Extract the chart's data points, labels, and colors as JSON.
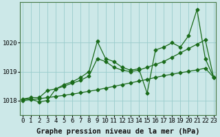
{
  "xlabel": "Graphe pression niveau de la mer (hPa)",
  "background_color": "#cce8e8",
  "grid_color": "#99cccc",
  "line_color": "#1a6b1a",
  "ylim": [
    1017.5,
    1021.4
  ],
  "xlim": [
    -0.3,
    23.3
  ],
  "yticks": [
    1018,
    1019,
    1020
  ],
  "xticks": [
    0,
    1,
    2,
    3,
    4,
    5,
    6,
    7,
    8,
    9,
    10,
    11,
    12,
    13,
    14,
    15,
    16,
    17,
    18,
    19,
    20,
    21,
    22,
    23
  ],
  "line_bottom_x": [
    0,
    1,
    2,
    3,
    4,
    5,
    6,
    7,
    8,
    9,
    10,
    11,
    12,
    13,
    14,
    15,
    16,
    17,
    18,
    19,
    20,
    21,
    22,
    23
  ],
  "line_bottom_y": [
    1018.0,
    1018.03,
    1018.06,
    1018.1,
    1018.14,
    1018.18,
    1018.22,
    1018.27,
    1018.32,
    1018.37,
    1018.43,
    1018.49,
    1018.55,
    1018.61,
    1018.67,
    1018.73,
    1018.8,
    1018.86,
    1018.91,
    1018.96,
    1019.01,
    1019.06,
    1019.12,
    1018.8
  ],
  "line_mid_x": [
    0,
    1,
    2,
    3,
    4,
    5,
    6,
    7,
    8,
    9,
    10,
    11,
    12,
    13,
    14,
    15,
    16,
    17,
    18,
    19,
    20,
    21,
    22,
    23
  ],
  "line_mid_y": [
    1018.05,
    1018.1,
    1018.1,
    1018.35,
    1018.4,
    1018.5,
    1018.6,
    1018.7,
    1018.85,
    1019.45,
    1019.35,
    1019.15,
    1019.05,
    1019.0,
    1019.05,
    1019.15,
    1019.25,
    1019.35,
    1019.5,
    1019.65,
    1019.8,
    1019.95,
    1020.1,
    1018.8
  ],
  "line_top_x": [
    0,
    1,
    2,
    3,
    4,
    5,
    6,
    7,
    8,
    9,
    10,
    11,
    12,
    13,
    14,
    15,
    16,
    17,
    18,
    19,
    20,
    21,
    22,
    23
  ],
  "line_top_y": [
    1018.05,
    1018.05,
    1017.95,
    1018.0,
    1018.4,
    1018.55,
    1018.65,
    1018.8,
    1019.0,
    1020.05,
    1019.45,
    1019.35,
    1019.15,
    1019.05,
    1019.1,
    1018.25,
    1019.75,
    1019.85,
    1020.0,
    1019.85,
    1020.25,
    1021.15,
    1019.45,
    1018.8
  ],
  "marker_size": 2.5,
  "line_width": 0.9,
  "xlabel_fontsize": 7.5,
  "tick_fontsize": 6.5
}
